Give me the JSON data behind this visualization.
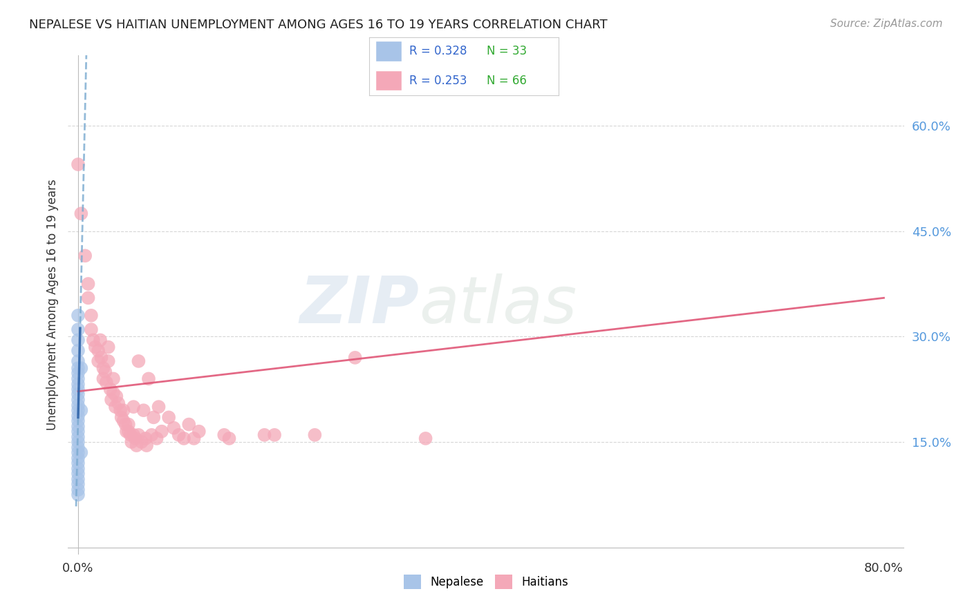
{
  "title": "NEPALESE VS HAITIAN UNEMPLOYMENT AMONG AGES 16 TO 19 YEARS CORRELATION CHART",
  "source_text": "Source: ZipAtlas.com",
  "ylabel": "Unemployment Among Ages 16 to 19 years",
  "xlim": [
    -0.01,
    0.82
  ],
  "ylim": [
    -0.01,
    0.7
  ],
  "x_ticks": [
    0.0,
    0.8
  ],
  "x_tick_labels": [
    "0.0%",
    "80.0%"
  ],
  "y_tick_labels_right": [
    "60.0%",
    "45.0%",
    "30.0%",
    "15.0%"
  ],
  "y_tick_values_right": [
    0.6,
    0.45,
    0.3,
    0.15
  ],
  "watermark_zip": "ZIP",
  "watermark_atlas": "atlas",
  "legend_r1": "R = 0.328",
  "legend_n1": "N = 33",
  "legend_r2": "R = 0.253",
  "legend_n2": "N = 66",
  "nepalese_color": "#a8c4e8",
  "haitian_color": "#f4a8b8",
  "nepalese_line_color": "#7aaad0",
  "haitian_line_color": "#e05878",
  "nepalese_points": [
    [
      0.0,
      0.33
    ],
    [
      0.0,
      0.31
    ],
    [
      0.0,
      0.295
    ],
    [
      0.0,
      0.28
    ],
    [
      0.0,
      0.265
    ],
    [
      0.0,
      0.255
    ],
    [
      0.0,
      0.248
    ],
    [
      0.0,
      0.24
    ],
    [
      0.0,
      0.232
    ],
    [
      0.0,
      0.225
    ],
    [
      0.0,
      0.218
    ],
    [
      0.0,
      0.21
    ],
    [
      0.0,
      0.202
    ],
    [
      0.0,
      0.195
    ],
    [
      0.0,
      0.187
    ],
    [
      0.0,
      0.18
    ],
    [
      0.0,
      0.172
    ],
    [
      0.0,
      0.165
    ],
    [
      0.0,
      0.157
    ],
    [
      0.0,
      0.15
    ],
    [
      0.0,
      0.142
    ],
    [
      0.0,
      0.135
    ],
    [
      0.0,
      0.127
    ],
    [
      0.0,
      0.12
    ],
    [
      0.0,
      0.112
    ],
    [
      0.0,
      0.105
    ],
    [
      0.0,
      0.097
    ],
    [
      0.0,
      0.09
    ],
    [
      0.0,
      0.082
    ],
    [
      0.0,
      0.075
    ],
    [
      0.003,
      0.255
    ],
    [
      0.003,
      0.195
    ],
    [
      0.003,
      0.135
    ]
  ],
  "haitian_points": [
    [
      0.0,
      0.545
    ],
    [
      0.003,
      0.475
    ],
    [
      0.007,
      0.415
    ],
    [
      0.01,
      0.375
    ],
    [
      0.01,
      0.355
    ],
    [
      0.013,
      0.33
    ],
    [
      0.013,
      0.31
    ],
    [
      0.015,
      0.295
    ],
    [
      0.017,
      0.285
    ],
    [
      0.02,
      0.28
    ],
    [
      0.02,
      0.265
    ],
    [
      0.022,
      0.295
    ],
    [
      0.023,
      0.27
    ],
    [
      0.025,
      0.255
    ],
    [
      0.025,
      0.24
    ],
    [
      0.027,
      0.25
    ],
    [
      0.028,
      0.235
    ],
    [
      0.03,
      0.285
    ],
    [
      0.03,
      0.265
    ],
    [
      0.032,
      0.225
    ],
    [
      0.033,
      0.21
    ],
    [
      0.035,
      0.24
    ],
    [
      0.035,
      0.22
    ],
    [
      0.037,
      0.2
    ],
    [
      0.038,
      0.215
    ],
    [
      0.04,
      0.205
    ],
    [
      0.042,
      0.195
    ],
    [
      0.043,
      0.185
    ],
    [
      0.045,
      0.195
    ],
    [
      0.045,
      0.18
    ],
    [
      0.047,
      0.175
    ],
    [
      0.048,
      0.165
    ],
    [
      0.05,
      0.175
    ],
    [
      0.05,
      0.165
    ],
    [
      0.052,
      0.16
    ],
    [
      0.053,
      0.15
    ],
    [
      0.055,
      0.2
    ],
    [
      0.055,
      0.16
    ],
    [
      0.057,
      0.155
    ],
    [
      0.058,
      0.145
    ],
    [
      0.06,
      0.265
    ],
    [
      0.06,
      0.16
    ],
    [
      0.063,
      0.15
    ],
    [
      0.065,
      0.195
    ],
    [
      0.067,
      0.155
    ],
    [
      0.068,
      0.145
    ],
    [
      0.07,
      0.24
    ],
    [
      0.073,
      0.16
    ],
    [
      0.075,
      0.185
    ],
    [
      0.078,
      0.155
    ],
    [
      0.08,
      0.2
    ],
    [
      0.083,
      0.165
    ],
    [
      0.09,
      0.185
    ],
    [
      0.095,
      0.17
    ],
    [
      0.1,
      0.16
    ],
    [
      0.105,
      0.155
    ],
    [
      0.11,
      0.175
    ],
    [
      0.115,
      0.155
    ],
    [
      0.12,
      0.165
    ],
    [
      0.145,
      0.16
    ],
    [
      0.15,
      0.155
    ],
    [
      0.185,
      0.16
    ],
    [
      0.195,
      0.16
    ],
    [
      0.235,
      0.16
    ],
    [
      0.275,
      0.27
    ],
    [
      0.345,
      0.155
    ]
  ],
  "background_color": "#ffffff",
  "grid_color": "#cccccc",
  "nepalese_line_points": [
    [
      0.0,
      0.185
    ],
    [
      0.003,
      0.375
    ]
  ],
  "haitian_line_x": [
    0.0,
    0.8
  ],
  "haitian_line_y": [
    0.222,
    0.355
  ]
}
